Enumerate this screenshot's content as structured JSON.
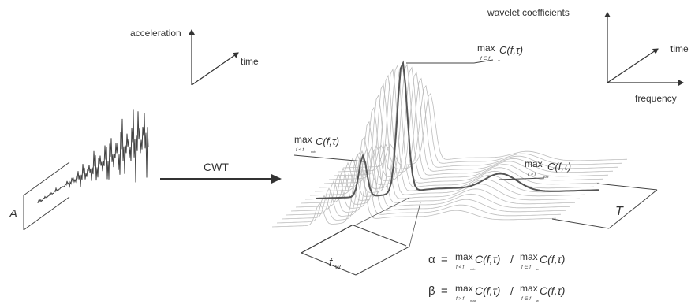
{
  "left_axes": {
    "vertical_label": "acceleration",
    "diagonal_label": "time"
  },
  "right_axes": {
    "vertical_label": "wavelet coefficients",
    "diagonal_label": "time",
    "horizontal_label": "frequency"
  },
  "signal": {
    "amplitude_label": "A"
  },
  "transform": {
    "arrow_label": "CWT"
  },
  "surface": {
    "width_label": "f",
    "width_subscript": "w",
    "depth_label": "T"
  },
  "peak_annotations": {
    "max_word": "max",
    "expression": "C(f,τ)",
    "center_sub": "f ∈ f",
    "center_subsub": "w",
    "low_sub": "f < f",
    "low_subsub": "min",
    "high_sub": "f > f",
    "high_subsub": "max"
  },
  "formulas": {
    "alpha": {
      "symbol": "α",
      "equals": "=",
      "num_sub": "f < f",
      "num_subsub": "min",
      "divider": "/",
      "den_sub": "f ∈ f",
      "den_subsub": "w"
    },
    "beta": {
      "symbol": "β",
      "equals": "=",
      "num_sub": "f > f",
      "num_subsub": "max",
      "divider": "/",
      "den_sub": "f ∈ f",
      "den_subsub": "w"
    }
  },
  "colors": {
    "ink": "#3a3a3a",
    "faint_curve": "#b8b8b8",
    "bold_curve": "#555555"
  }
}
